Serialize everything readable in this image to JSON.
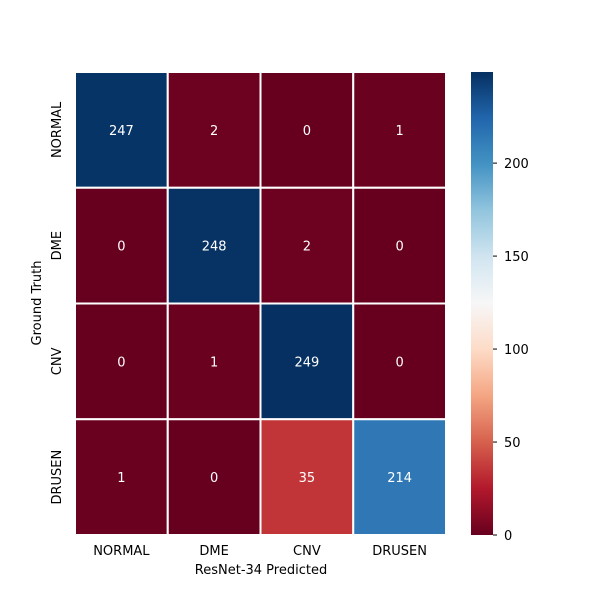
{
  "chart_data": {
    "type": "heatmap",
    "title": "",
    "xlabel": "ResNet-34 Predicted",
    "ylabel": "Ground Truth",
    "x_categories": [
      "NORMAL",
      "DME",
      "CNV",
      "DRUSEN"
    ],
    "y_categories": [
      "NORMAL",
      "DME",
      "CNV",
      "DRUSEN"
    ],
    "values": [
      [
        247,
        2,
        0,
        1
      ],
      [
        0,
        248,
        2,
        0
      ],
      [
        0,
        1,
        249,
        0
      ],
      [
        1,
        0,
        35,
        214
      ]
    ],
    "colorbar": {
      "colormap": "RdBu",
      "range": [
        0,
        249
      ],
      "ticks": [
        "0",
        "50",
        "100",
        "150",
        "200"
      ]
    }
  }
}
